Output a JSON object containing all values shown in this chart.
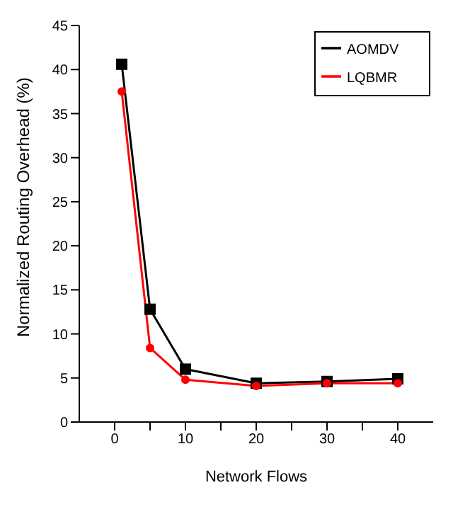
{
  "chart_data": {
    "type": "line",
    "xlabel": "Network Flows",
    "ylabel": "Normalized Routing Overhead (%)",
    "x": [
      1,
      5,
      10,
      20,
      30,
      40
    ],
    "series": [
      {
        "name": "AOMDV",
        "color": "#000000",
        "marker": "square",
        "values": [
          40.6,
          12.8,
          6.0,
          4.4,
          4.6,
          4.9
        ]
      },
      {
        "name": "LQBMR",
        "color": "#ff0000",
        "marker": "circle",
        "values": [
          37.5,
          8.4,
          4.8,
          4.1,
          4.4,
          4.4
        ]
      }
    ],
    "xlim": [
      -5,
      45
    ],
    "xticks": [
      0,
      {
        "value": 5,
        "label": null
      },
      10,
      {
        "value": 15,
        "label": null
      },
      20,
      {
        "value": 25,
        "label": null
      },
      30,
      {
        "value": 35,
        "label": null
      },
      40
    ],
    "ylim": [
      0,
      45
    ],
    "yticks": [
      0,
      5,
      10,
      15,
      20,
      25,
      30,
      35,
      40,
      45
    ],
    "grid": false,
    "legend": "top right",
    "line_style": "solid"
  }
}
